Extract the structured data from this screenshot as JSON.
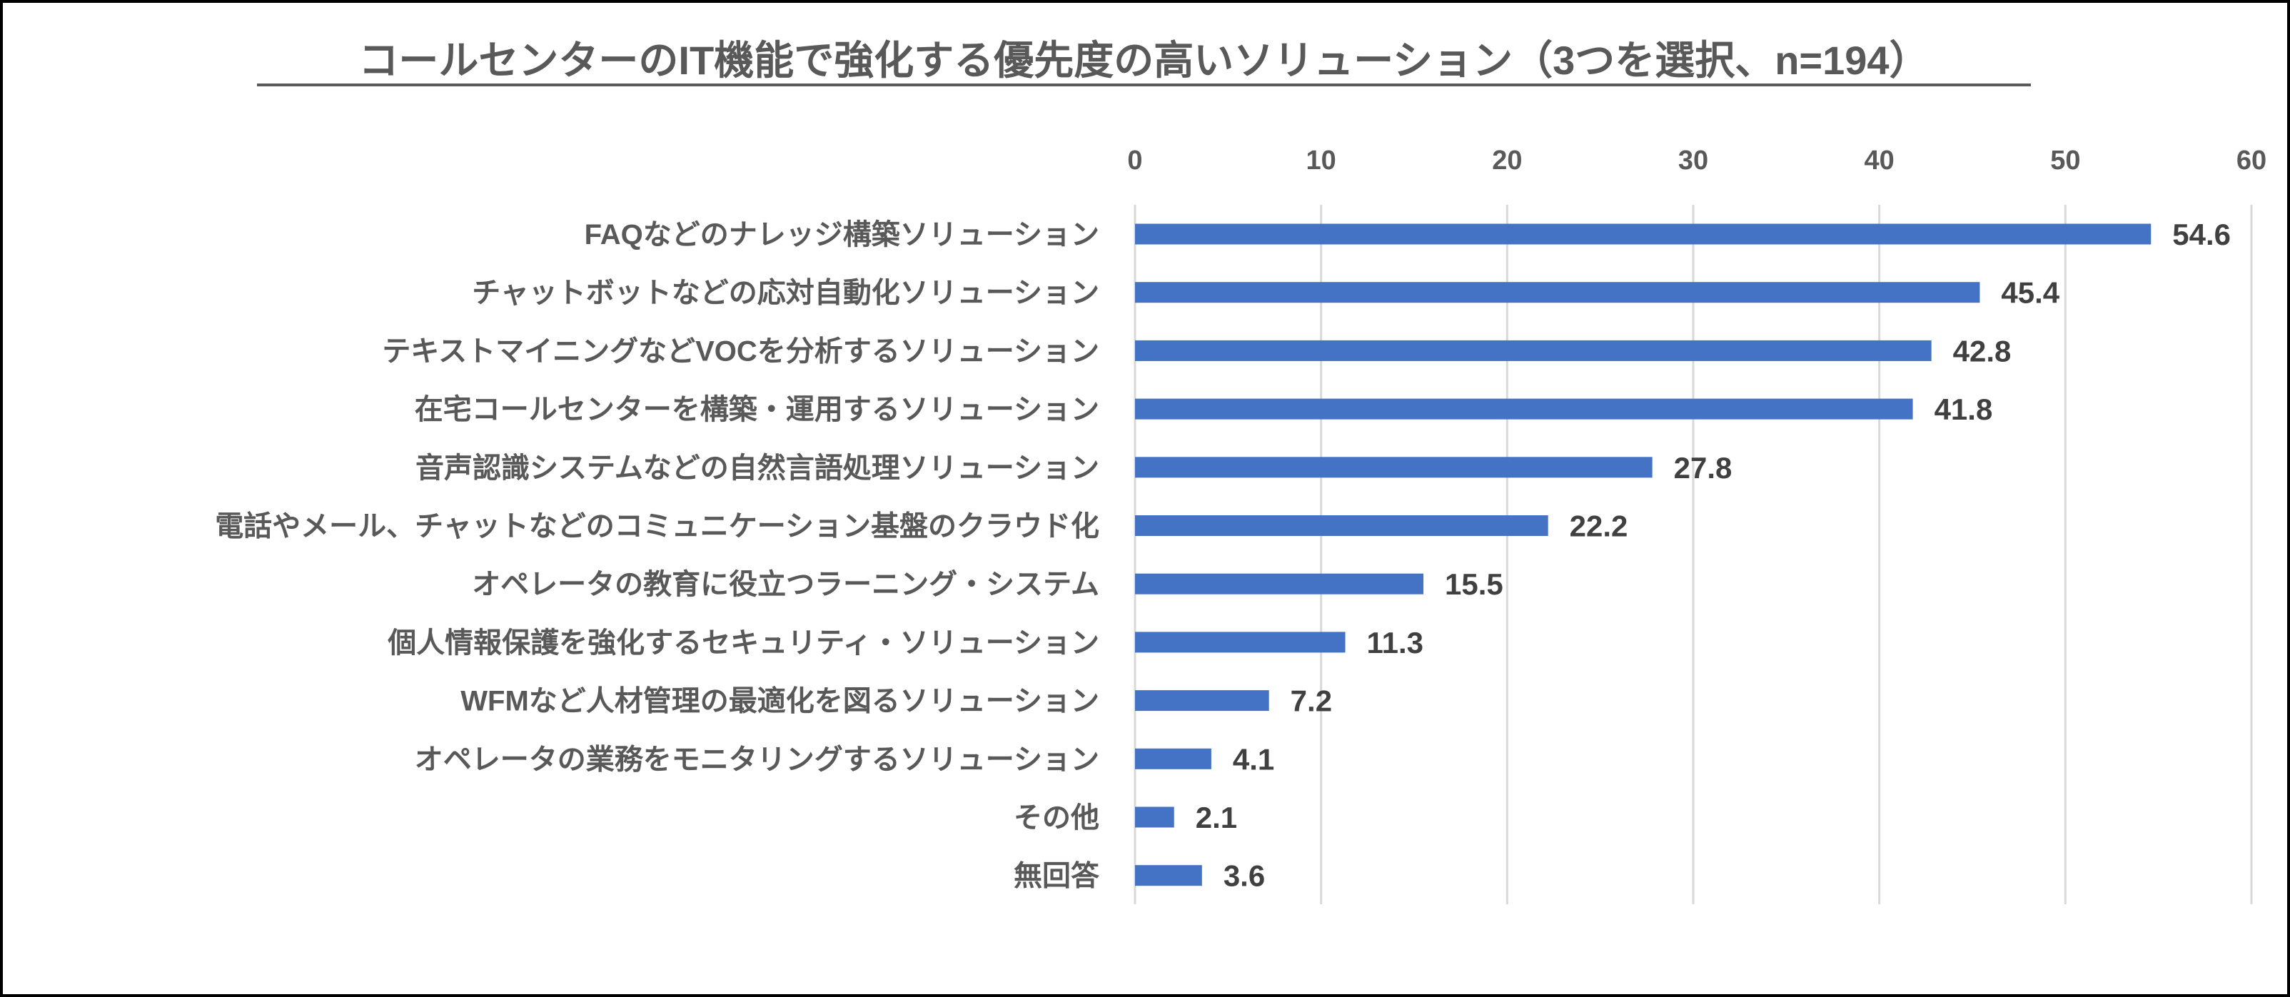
{
  "chart_data": {
    "type": "bar",
    "orientation": "horizontal",
    "title": "コールセンターのIT機能で強化する優先度の高いソリューション（3つを選択、n=194）",
    "xlabel": "",
    "ylabel": "",
    "xlim": [
      0,
      60
    ],
    "ticks": [
      "0",
      "10",
      "20",
      "30",
      "40",
      "50",
      "60"
    ],
    "grid": true,
    "legend": "none",
    "bar_color": "#4472C4",
    "categories": [
      "FAQなどのナレッジ構築ソリューション",
      "チャットボットなどの応対自動化ソリューション",
      "テキストマイニングなどVOCを分析するソリューション",
      "在宅コールセンターを構築・運用するソリューション",
      "音声認識システムなどの自然言語処理ソリューション",
      "電話やメール、チャットなどのコミュニケーション基盤のクラウド化",
      "オペレータの教育に役立つラーニング・システム",
      "個人情報保護を強化するセキュリティ・ソリューション",
      "WFMなど人材管理の最適化を図るソリューション",
      "オペレータの業務をモニタリングするソリューション",
      "その他",
      "無回答"
    ],
    "values": [
      54.6,
      45.4,
      42.8,
      41.8,
      27.8,
      22.2,
      15.5,
      11.3,
      7.2,
      4.1,
      2.1,
      3.6
    ],
    "value_labels": [
      "54.6",
      "45.4",
      "42.8",
      "41.8",
      "27.8",
      "22.2",
      "15.5",
      "11.3",
      "7.2",
      "4.1",
      "2.1",
      "3.6"
    ]
  }
}
